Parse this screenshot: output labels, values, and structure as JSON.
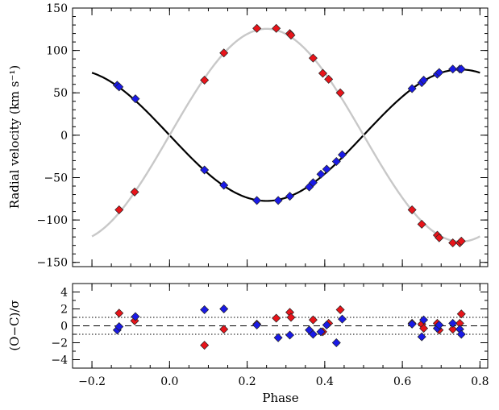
{
  "chart_data": [
    {
      "type": "scatter",
      "ylabel": "Radial velocity (km s⁻¹)",
      "xlim": [
        -0.25,
        0.82
      ],
      "ylim": [
        -155,
        150
      ],
      "xticks": [
        -0.2,
        0.0,
        0.2,
        0.4,
        0.6,
        0.8
      ],
      "yticks": [
        -150,
        -100,
        -50,
        0,
        50,
        100,
        150
      ],
      "ytick_labels": [
        "−150",
        "−100",
        "−50",
        "0",
        "50",
        "100",
        "150"
      ],
      "curves": [
        {
          "gamma": 0,
          "K": 77.5,
          "phase0": 0.0,
          "color": "#000000",
          "xrange": [
            -0.2,
            0.8
          ]
        },
        {
          "gamma": 0,
          "K": 125.5,
          "phase0": 0.0,
          "color": "#c8c8c8",
          "xrange": [
            -0.2,
            0.8
          ]
        }
      ],
      "series": [
        {
          "color": "#e8141a",
          "points": [
            [
              -0.13,
              -88
            ],
            [
              -0.09,
              -67
            ],
            [
              0.09,
              65
            ],
            [
              0.14,
              97
            ],
            [
              0.225,
              126
            ],
            [
              0.275,
              126
            ],
            [
              0.31,
              120
            ],
            [
              0.313,
              118
            ],
            [
              0.37,
              91
            ],
            [
              0.395,
              73
            ],
            [
              0.41,
              66
            ],
            [
              0.44,
              50
            ],
            [
              0.625,
              -88
            ],
            [
              0.65,
              -105
            ],
            [
              0.69,
              -118
            ],
            [
              0.695,
              -121
            ],
            [
              0.73,
              -127
            ],
            [
              0.748,
              -127
            ],
            [
              0.752,
              -125
            ]
          ]
        },
        {
          "color": "#1a1ae6",
          "points": [
            [
              -0.135,
              59
            ],
            [
              -0.13,
              57
            ],
            [
              -0.088,
              43
            ],
            [
              0.09,
              -41
            ],
            [
              0.14,
              -59
            ],
            [
              0.225,
              -77
            ],
            [
              0.28,
              -77
            ],
            [
              0.31,
              -72
            ],
            [
              0.36,
              -61
            ],
            [
              0.37,
              -56
            ],
            [
              0.39,
              -46
            ],
            [
              0.405,
              -40
            ],
            [
              0.43,
              -31
            ],
            [
              0.445,
              -23
            ],
            [
              0.625,
              55
            ],
            [
              0.65,
              62
            ],
            [
              0.655,
              65
            ],
            [
              0.69,
              72
            ],
            [
              0.695,
              74
            ],
            [
              0.73,
              78
            ],
            [
              0.748,
              78
            ],
            [
              0.752,
              78
            ]
          ]
        }
      ]
    },
    {
      "type": "scatter",
      "xlabel": "Phase",
      "ylabel": "(O−C)/σ",
      "xlim": [
        -0.25,
        0.82
      ],
      "ylim": [
        -5,
        5
      ],
      "xticks": [
        -0.2,
        0.0,
        0.2,
        0.4,
        0.6,
        0.8
      ],
      "xtick_labels": [
        "−0.2",
        "0.0",
        "0.2",
        "0.4",
        "0.6",
        "0.8"
      ],
      "yticks": [
        -4,
        -2,
        0,
        2,
        4
      ],
      "ytick_labels": [
        "−4",
        "−2",
        "0",
        "2",
        "4"
      ],
      "reference_lines": [
        {
          "y": 0,
          "style": "dashed"
        },
        {
          "y": 1,
          "style": "dotted"
        },
        {
          "y": -1,
          "style": "dotted"
        }
      ],
      "series": [
        {
          "color": "#e8141a",
          "points": [
            [
              -0.13,
              1.5
            ],
            [
              -0.09,
              0.6
            ],
            [
              0.09,
              -2.3
            ],
            [
              0.14,
              -0.4
            ],
            [
              0.225,
              0.2
            ],
            [
              0.275,
              0.9
            ],
            [
              0.31,
              1.6
            ],
            [
              0.313,
              1.0
            ],
            [
              0.37,
              0.7
            ],
            [
              0.395,
              -0.7
            ],
            [
              0.41,
              0.3
            ],
            [
              0.44,
              1.9
            ],
            [
              0.625,
              0.3
            ],
            [
              0.65,
              0.2
            ],
            [
              0.655,
              -0.3
            ],
            [
              0.69,
              0.3
            ],
            [
              0.695,
              -0.5
            ],
            [
              0.73,
              -0.4
            ],
            [
              0.748,
              0.3
            ],
            [
              0.752,
              1.4
            ]
          ]
        },
        {
          "color": "#1a1ae6",
          "points": [
            [
              -0.135,
              -0.5
            ],
            [
              -0.13,
              -0.1
            ],
            [
              -0.088,
              1.1
            ],
            [
              0.09,
              1.9
            ],
            [
              0.14,
              2.0
            ],
            [
              0.225,
              0.1
            ],
            [
              0.28,
              -1.4
            ],
            [
              0.31,
              -1.1
            ],
            [
              0.36,
              -0.5
            ],
            [
              0.37,
              -1.0
            ],
            [
              0.39,
              -0.7
            ],
            [
              0.405,
              0.1
            ],
            [
              0.43,
              -2.0
            ],
            [
              0.445,
              0.8
            ],
            [
              0.625,
              0.2
            ],
            [
              0.65,
              -1.3
            ],
            [
              0.655,
              0.7
            ],
            [
              0.69,
              -0.3
            ],
            [
              0.695,
              0.1
            ],
            [
              0.73,
              0.3
            ],
            [
              0.748,
              -0.4
            ],
            [
              0.752,
              -1.0
            ]
          ]
        }
      ]
    }
  ]
}
